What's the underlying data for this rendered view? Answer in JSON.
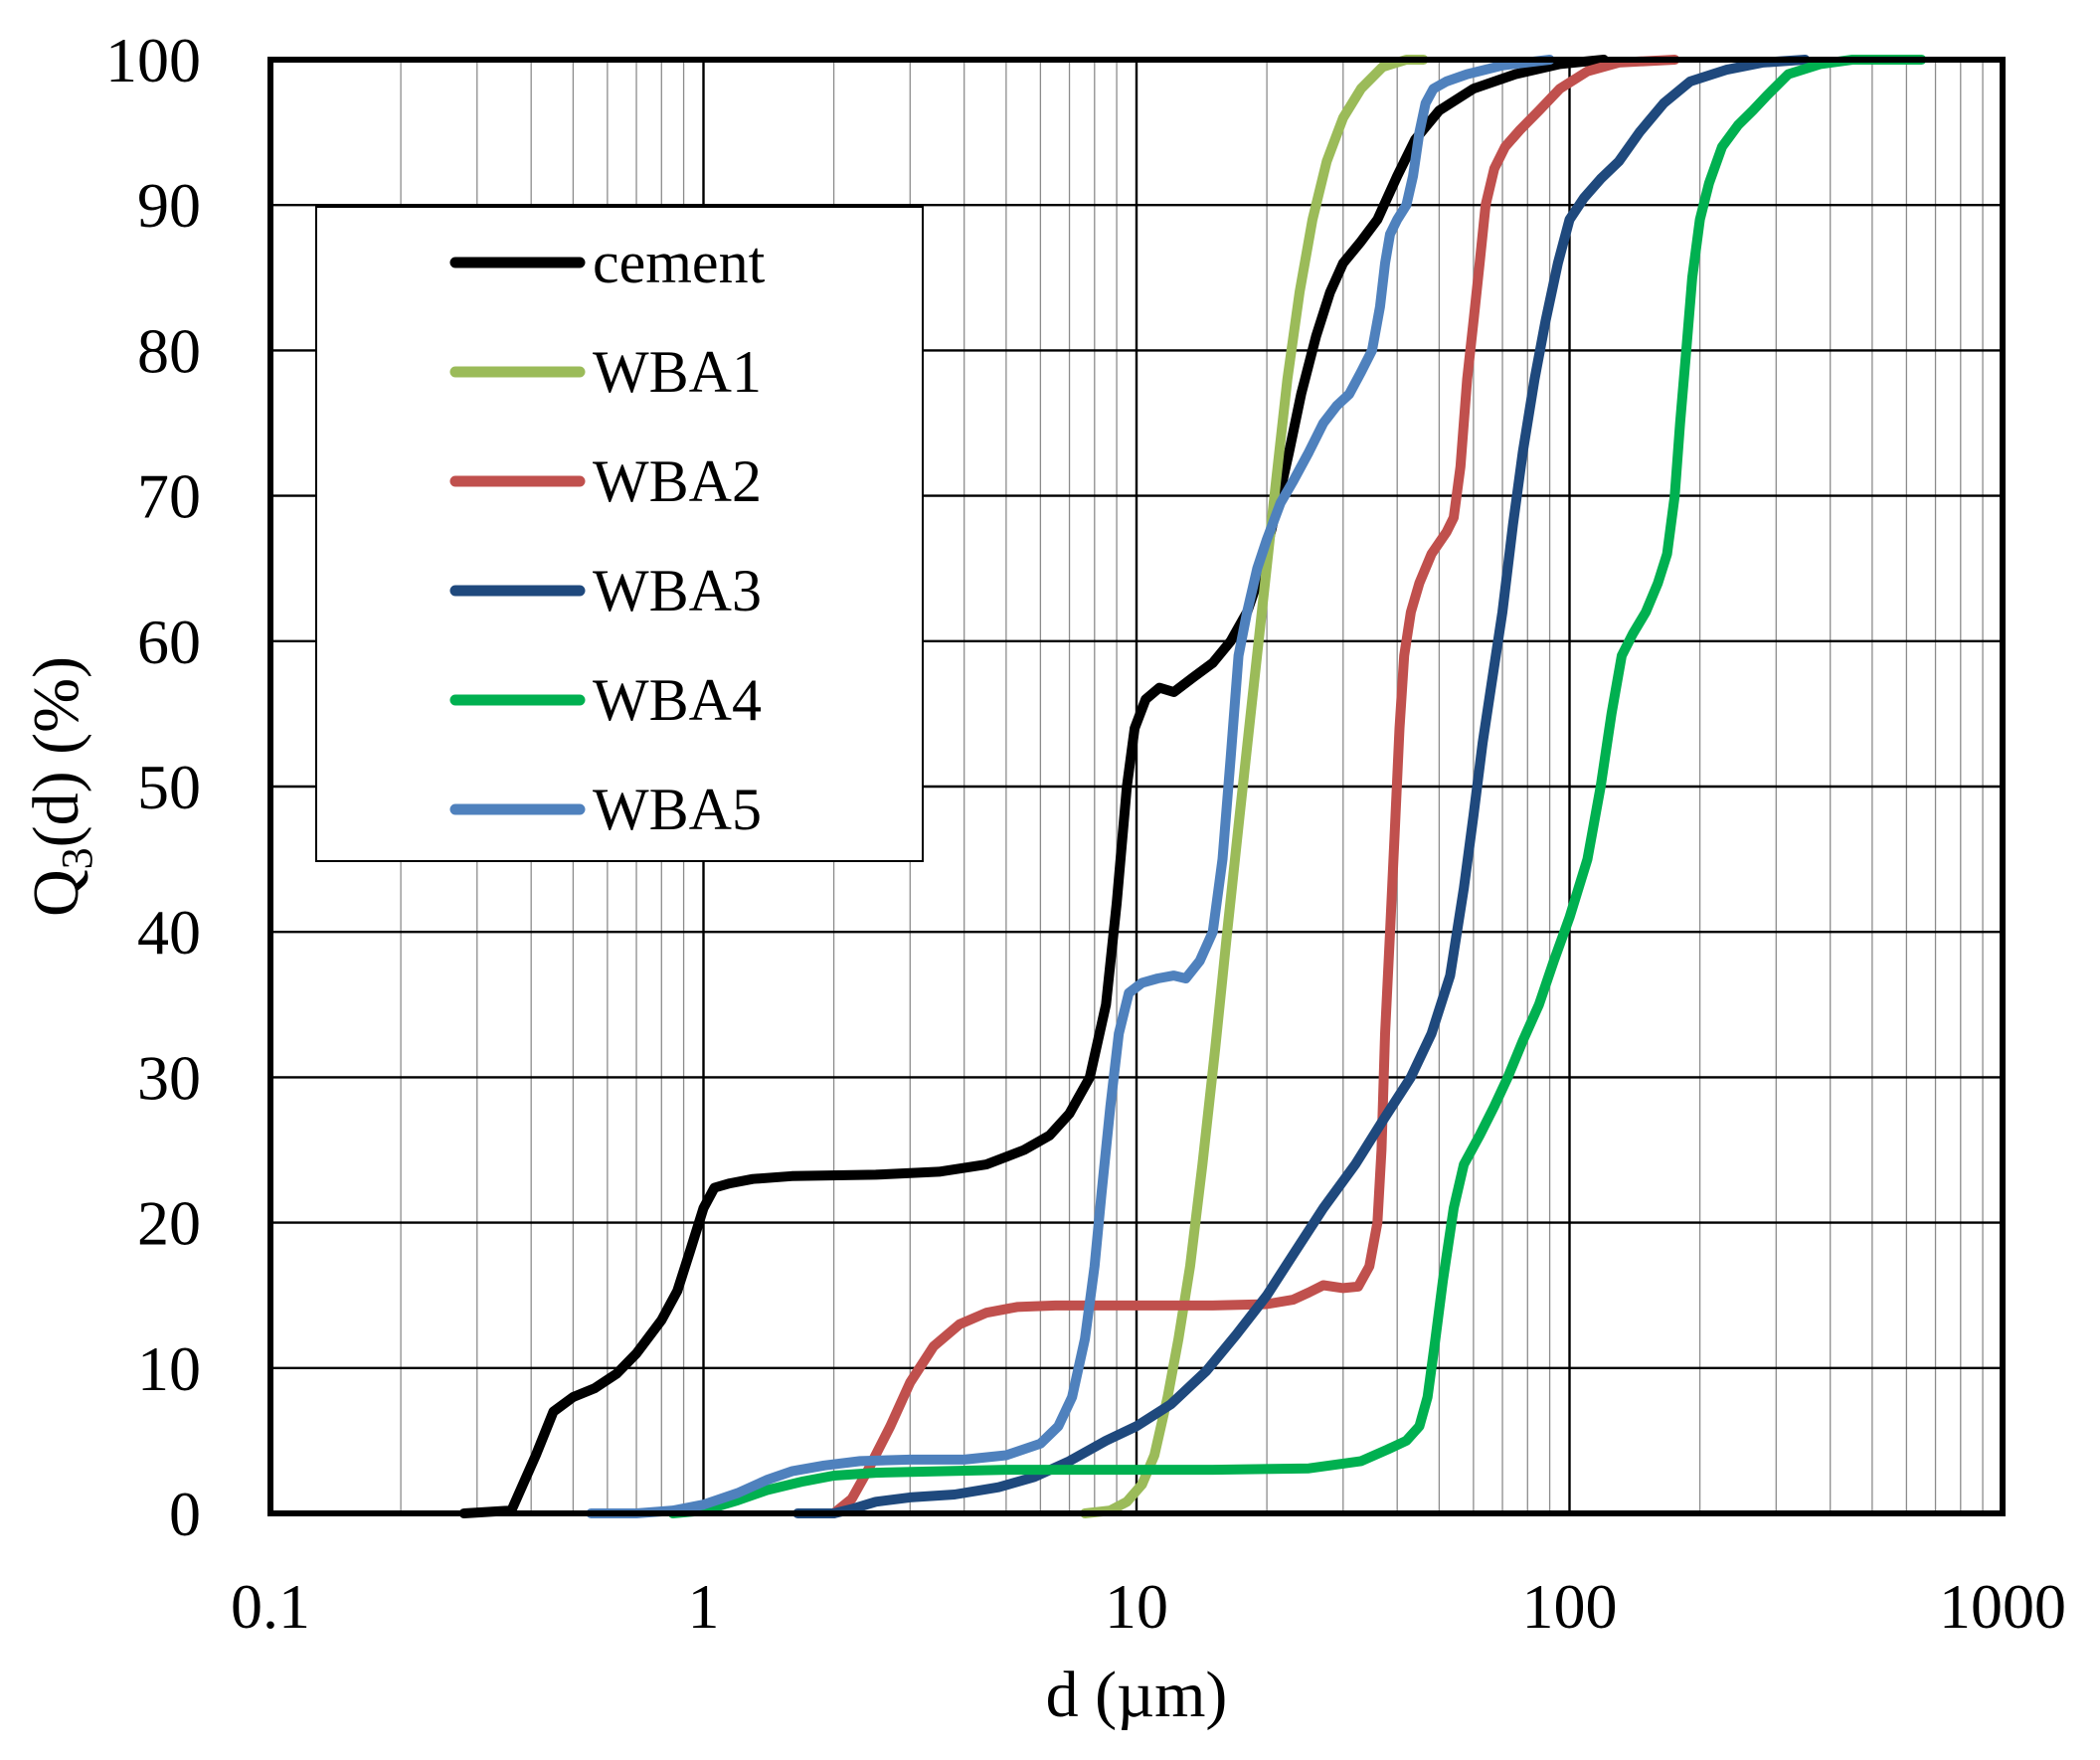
{
  "chart_data": {
    "type": "line",
    "x_scale": "log",
    "title": "",
    "xlabel": "d (µm)",
    "ylabel": {
      "main": "Q",
      "subscript": "3",
      "rest": "(d) (%)"
    },
    "xlim": [
      0.1,
      1000
    ],
    "ylim": [
      0,
      100
    ],
    "x_ticks": [
      0.1,
      1,
      10,
      100,
      1000
    ],
    "x_tick_labels": [
      "0.1",
      "1",
      "10",
      "100",
      "1000"
    ],
    "y_ticks": [
      0,
      10,
      20,
      30,
      40,
      50,
      60,
      70,
      80,
      90,
      100
    ],
    "y_tick_labels": [
      "0",
      "10",
      "20",
      "30",
      "40",
      "50",
      "60",
      "70",
      "80",
      "90",
      "100"
    ],
    "grid": true,
    "legend_position": "upper-left",
    "series": [
      {
        "name": "cement",
        "color": "#000000",
        "points": [
          [
            0.28,
            0
          ],
          [
            0.36,
            0.2
          ],
          [
            0.41,
            4
          ],
          [
            0.45,
            7
          ],
          [
            0.5,
            8
          ],
          [
            0.56,
            8.6
          ],
          [
            0.63,
            9.6
          ],
          [
            0.7,
            11
          ],
          [
            0.8,
            13.3
          ],
          [
            0.87,
            15.3
          ],
          [
            0.93,
            18
          ],
          [
            1.0,
            21
          ],
          [
            1.06,
            22.4
          ],
          [
            1.15,
            22.7
          ],
          [
            1.3,
            23
          ],
          [
            1.6,
            23.2
          ],
          [
            2.5,
            23.3
          ],
          [
            3.5,
            23.5
          ],
          [
            4.5,
            24
          ],
          [
            5.5,
            25
          ],
          [
            6.3,
            26
          ],
          [
            7.0,
            27.5
          ],
          [
            7.8,
            30
          ],
          [
            8.5,
            35
          ],
          [
            9.0,
            42
          ],
          [
            9.5,
            50
          ],
          [
            9.9,
            54
          ],
          [
            10.5,
            56
          ],
          [
            11.3,
            56.8
          ],
          [
            12.2,
            56.5
          ],
          [
            13.5,
            57.5
          ],
          [
            15.0,
            58.5
          ],
          [
            16.5,
            60
          ],
          [
            18.0,
            62
          ],
          [
            19.5,
            65
          ],
          [
            21.0,
            69
          ],
          [
            22.5,
            73
          ],
          [
            24.0,
            77
          ],
          [
            26.0,
            81
          ],
          [
            28.0,
            84
          ],
          [
            30.0,
            86
          ],
          [
            33.0,
            87.5
          ],
          [
            36.0,
            89
          ],
          [
            40.0,
            92
          ],
          [
            44.0,
            94.5
          ],
          [
            50.0,
            96.5
          ],
          [
            60.0,
            98
          ],
          [
            75.0,
            99
          ],
          [
            95.0,
            99.7
          ],
          [
            120.0,
            100
          ]
        ]
      },
      {
        "name": "WBA1",
        "color": "#9BBB59",
        "points": [
          [
            7.6,
            0
          ],
          [
            8.7,
            0.2
          ],
          [
            9.5,
            0.8
          ],
          [
            10.3,
            2
          ],
          [
            11.0,
            4
          ],
          [
            11.8,
            8
          ],
          [
            12.5,
            12
          ],
          [
            13.3,
            17
          ],
          [
            14.2,
            24
          ],
          [
            15.2,
            32
          ],
          [
            16.2,
            40
          ],
          [
            17.3,
            48
          ],
          [
            18.5,
            56
          ],
          [
            19.8,
            64
          ],
          [
            21.0,
            71
          ],
          [
            22.3,
            78
          ],
          [
            23.8,
            84
          ],
          [
            25.5,
            89
          ],
          [
            27.5,
            93
          ],
          [
            30.0,
            96
          ],
          [
            33.0,
            98
          ],
          [
            37.0,
            99.5
          ],
          [
            42.0,
            100
          ],
          [
            46.0,
            100
          ]
        ]
      },
      {
        "name": "WBA2",
        "color": "#C0504D",
        "points": [
          [
            2.0,
            0
          ],
          [
            2.2,
            1
          ],
          [
            2.4,
            3
          ],
          [
            2.7,
            6
          ],
          [
            3.0,
            9
          ],
          [
            3.4,
            11.5
          ],
          [
            3.9,
            13
          ],
          [
            4.5,
            13.8
          ],
          [
            5.3,
            14.2
          ],
          [
            6.5,
            14.3
          ],
          [
            10.0,
            14.3
          ],
          [
            15.0,
            14.3
          ],
          [
            20.0,
            14.4
          ],
          [
            23.0,
            14.7
          ],
          [
            25.0,
            15.2
          ],
          [
            27.0,
            15.7
          ],
          [
            30.0,
            15.5
          ],
          [
            32.5,
            15.6
          ],
          [
            34.5,
            17
          ],
          [
            36.0,
            20
          ],
          [
            36.8,
            25
          ],
          [
            37.5,
            33
          ],
          [
            38.5,
            40
          ],
          [
            39.5,
            47
          ],
          [
            40.5,
            54
          ],
          [
            41.5,
            59
          ],
          [
            43.0,
            62
          ],
          [
            45.0,
            64
          ],
          [
            48.0,
            66
          ],
          [
            52.0,
            67.5
          ],
          [
            54.0,
            68.5
          ],
          [
            56.0,
            72
          ],
          [
            58.0,
            78
          ],
          [
            60.0,
            82
          ],
          [
            62.0,
            86
          ],
          [
            64.0,
            90
          ],
          [
            67.0,
            92.5
          ],
          [
            71.0,
            94
          ],
          [
            77.0,
            95.2
          ],
          [
            85.0,
            96.5
          ],
          [
            95.0,
            98
          ],
          [
            110.0,
            99.2
          ],
          [
            130.0,
            99.8
          ],
          [
            175.0,
            100
          ]
        ]
      },
      {
        "name": "WBA3",
        "color": "#1F497D",
        "points": [
          [
            1.65,
            0
          ],
          [
            2.0,
            0
          ],
          [
            2.2,
            0.3
          ],
          [
            2.5,
            0.8
          ],
          [
            3.0,
            1.1
          ],
          [
            3.8,
            1.3
          ],
          [
            4.8,
            1.8
          ],
          [
            5.8,
            2.5
          ],
          [
            7.0,
            3.6
          ],
          [
            8.5,
            5
          ],
          [
            10.0,
            6
          ],
          [
            12.0,
            7.5
          ],
          [
            14.5,
            9.8
          ],
          [
            17.0,
            12.3
          ],
          [
            20.0,
            15
          ],
          [
            23.0,
            17.8
          ],
          [
            27.0,
            21
          ],
          [
            32.0,
            24
          ],
          [
            37.0,
            27
          ],
          [
            43.0,
            30
          ],
          [
            48.0,
            33
          ],
          [
            53.0,
            37
          ],
          [
            57.0,
            43
          ],
          [
            60.0,
            48
          ],
          [
            63.0,
            53
          ],
          [
            66.0,
            57
          ],
          [
            70.0,
            62
          ],
          [
            74.0,
            68
          ],
          [
            78.0,
            73
          ],
          [
            83.0,
            78
          ],
          [
            88.0,
            82
          ],
          [
            94.0,
            86
          ],
          [
            100.0,
            89
          ],
          [
            108.0,
            90.5
          ],
          [
            118.0,
            91.8
          ],
          [
            130.0,
            93
          ],
          [
            145.0,
            95
          ],
          [
            165.0,
            97
          ],
          [
            190.0,
            98.5
          ],
          [
            230.0,
            99.3
          ],
          [
            280.0,
            99.8
          ],
          [
            350.0,
            100
          ]
        ]
      },
      {
        "name": "WBA4",
        "color": "#00B050",
        "points": [
          [
            0.85,
            0
          ],
          [
            1.0,
            0.2
          ],
          [
            1.2,
            0.9
          ],
          [
            1.4,
            1.6
          ],
          [
            1.7,
            2.2
          ],
          [
            2.0,
            2.6
          ],
          [
            2.5,
            2.8
          ],
          [
            3.5,
            2.9
          ],
          [
            5.0,
            3.0
          ],
          [
            8.0,
            3.0
          ],
          [
            15.0,
            3.0
          ],
          [
            25.0,
            3.1
          ],
          [
            33.0,
            3.6
          ],
          [
            38.0,
            4.4
          ],
          [
            42.0,
            5.0
          ],
          [
            45.0,
            6
          ],
          [
            47.0,
            8
          ],
          [
            49.0,
            12
          ],
          [
            51.0,
            16
          ],
          [
            54.0,
            21
          ],
          [
            57.0,
            24
          ],
          [
            62.0,
            26
          ],
          [
            67.0,
            28
          ],
          [
            72.0,
            30
          ],
          [
            78.0,
            32.5
          ],
          [
            85.0,
            35
          ],
          [
            92.0,
            38
          ],
          [
            100.0,
            41
          ],
          [
            110.0,
            45
          ],
          [
            118.0,
            50
          ],
          [
            125.0,
            55
          ],
          [
            132.0,
            59
          ],
          [
            140.0,
            60.5
          ],
          [
            150.0,
            62
          ],
          [
            160.0,
            64
          ],
          [
            168.0,
            66
          ],
          [
            175.0,
            70
          ],
          [
            180.0,
            75
          ],
          [
            186.0,
            80
          ],
          [
            192.0,
            85
          ],
          [
            200.0,
            89
          ],
          [
            210.0,
            91.5
          ],
          [
            225.0,
            94
          ],
          [
            245.0,
            95.5
          ],
          [
            265.0,
            96.5
          ],
          [
            285.0,
            97.5
          ],
          [
            320.0,
            99
          ],
          [
            380.0,
            99.7
          ],
          [
            450.0,
            100
          ],
          [
            650.0,
            100
          ]
        ]
      },
      {
        "name": "WBA5",
        "color": "#4F81BD",
        "points": [
          [
            0.55,
            0
          ],
          [
            0.7,
            0
          ],
          [
            0.85,
            0.2
          ],
          [
            1.0,
            0.6
          ],
          [
            1.2,
            1.4
          ],
          [
            1.4,
            2.3
          ],
          [
            1.6,
            2.9
          ],
          [
            1.9,
            3.3
          ],
          [
            2.3,
            3.6
          ],
          [
            3.0,
            3.7
          ],
          [
            4.0,
            3.7
          ],
          [
            5.0,
            4
          ],
          [
            6.0,
            4.8
          ],
          [
            6.6,
            6
          ],
          [
            7.1,
            8
          ],
          [
            7.6,
            12
          ],
          [
            8.0,
            17
          ],
          [
            8.3,
            22
          ],
          [
            8.7,
            28
          ],
          [
            9.1,
            33
          ],
          [
            9.6,
            35.8
          ],
          [
            10.3,
            36.5
          ],
          [
            11.2,
            36.8
          ],
          [
            12.2,
            37
          ],
          [
            13.0,
            36.8
          ],
          [
            14.0,
            38
          ],
          [
            15.0,
            40
          ],
          [
            15.8,
            45
          ],
          [
            16.5,
            52
          ],
          [
            17.2,
            59
          ],
          [
            18.0,
            62
          ],
          [
            19.0,
            65
          ],
          [
            20.0,
            67
          ],
          [
            21.5,
            69.5
          ],
          [
            23.0,
            71
          ],
          [
            25.0,
            73
          ],
          [
            27.0,
            75
          ],
          [
            29.0,
            76.2
          ],
          [
            31.0,
            77
          ],
          [
            33.0,
            78.5
          ],
          [
            35.0,
            80
          ],
          [
            36.5,
            83
          ],
          [
            37.5,
            86
          ],
          [
            38.5,
            88
          ],
          [
            40.0,
            89
          ],
          [
            42.0,
            90
          ],
          [
            43.5,
            92
          ],
          [
            45.0,
            95
          ],
          [
            46.5,
            97
          ],
          [
            48.5,
            98
          ],
          [
            52.0,
            98.5
          ],
          [
            58.0,
            99
          ],
          [
            70.0,
            99.6
          ],
          [
            90.0,
            100
          ]
        ]
      }
    ]
  }
}
